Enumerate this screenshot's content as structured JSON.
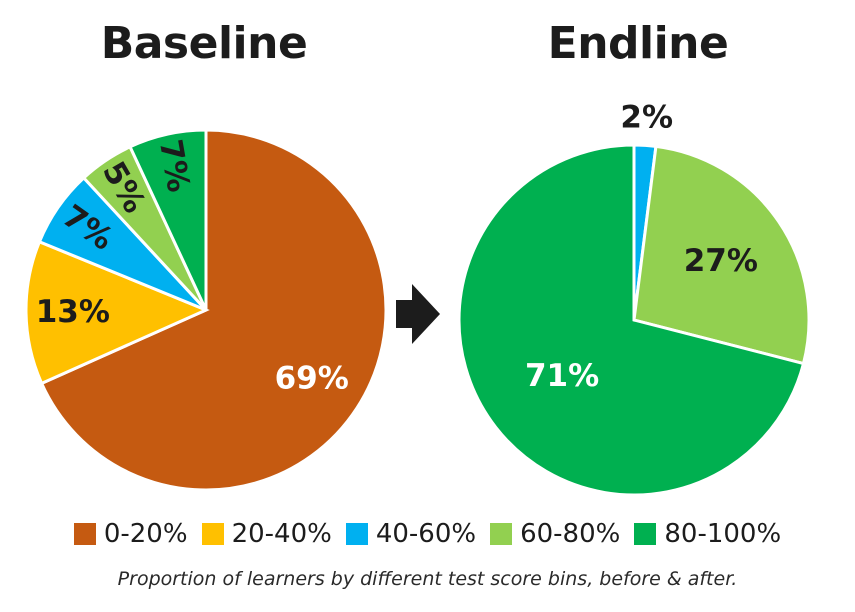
{
  "chart_data": [
    {
      "type": "pie",
      "title": "Baseline",
      "categories": [
        "0-20%",
        "20-40%",
        "40-60%",
        "60-80%",
        "80-100%"
      ],
      "values": [
        69,
        13,
        7,
        5,
        7
      ],
      "labels": [
        "69%",
        "13%",
        "7%",
        "5%",
        "7%"
      ]
    },
    {
      "type": "pie",
      "title": "Endline",
      "categories": [
        "0-20%",
        "20-40%",
        "40-60%",
        "60-80%",
        "80-100%"
      ],
      "values": [
        0,
        0,
        2,
        27,
        71
      ],
      "labels": [
        "",
        "",
        "2%",
        "27%",
        "71%"
      ]
    }
  ],
  "legend": {
    "entries": [
      "0-20%",
      "20-40%",
      "40-60%",
      "60-80%",
      "80-100%"
    ],
    "colors": [
      "#c55a11",
      "#ffc000",
      "#00b0f0",
      "#92d050",
      "#00b050"
    ]
  },
  "caption": "Proportion of learners by different test score bins, before & after.",
  "arrow_icon": "right-arrow-icon"
}
